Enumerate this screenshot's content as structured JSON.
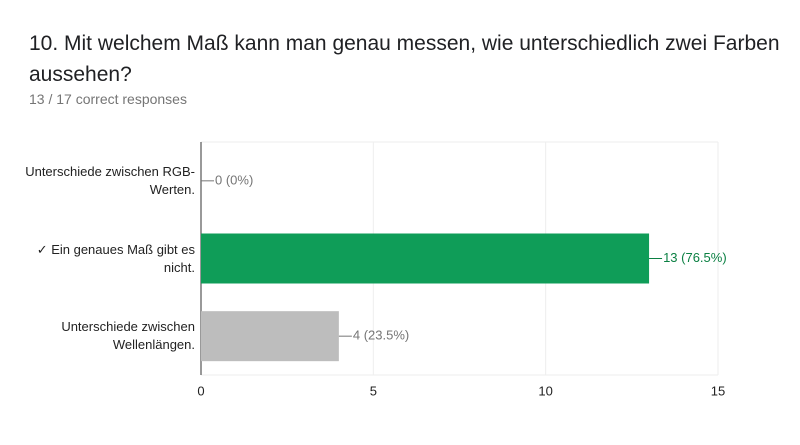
{
  "chart_data": {
    "type": "bar",
    "orientation": "horizontal",
    "title": "10. Mit welchem Maß kann man genau messen, wie unterschiedlich zwei Farben aussehen?",
    "subtitle": "13 / 17 correct responses",
    "categories": [
      "Unterschiede zwischen RGB-Werten.",
      "✓ Ein genaues Maß gibt es nicht.",
      "Unterschiede zwischen Wellenlängen."
    ],
    "values": [
      0,
      13,
      4
    ],
    "value_labels": [
      "0 (0%)",
      "13 (76.5%)",
      "4 (23.5%)"
    ],
    "colors": [
      "#bdbdbd",
      "#0f9d58",
      "#bdbdbd"
    ],
    "label_colors": [
      "#757575",
      "#0b8043",
      "#757575"
    ],
    "xlim": [
      0,
      15
    ],
    "xticks": [
      0,
      5,
      10,
      15
    ],
    "grid": true
  }
}
